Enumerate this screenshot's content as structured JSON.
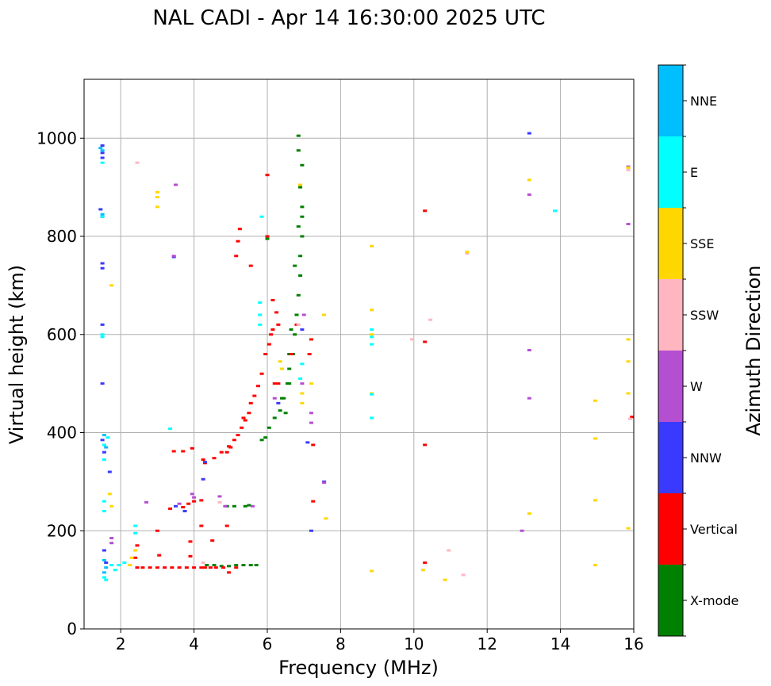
{
  "chart_data": {
    "type": "scatter",
    "title": "NAL CADI - Apr 14 16:30:00 2025 UTC",
    "xlabel": "Frequency (MHz)",
    "ylabel": "Virtual height (km)",
    "xlim": [
      1.0,
      16.0
    ],
    "ylim": [
      0,
      1120
    ],
    "xticks": [
      2,
      4,
      6,
      8,
      10,
      12,
      14,
      16
    ],
    "yticks": [
      0,
      200,
      400,
      600,
      800,
      1000
    ],
    "grid": true,
    "colorbar": {
      "label": "Azimuth Direction",
      "categories": [
        "X-mode",
        "Vertical",
        "NNW",
        "W",
        "SSW",
        "SSE",
        "E",
        "NNE"
      ],
      "colors": [
        "#008000",
        "#ff0000",
        "#3a3aff",
        "#b54fd2",
        "#ffb6c1",
        "#ffd700",
        "#00ffff",
        "#00bfff"
      ]
    },
    "series": [
      {
        "name": "X-mode",
        "points": [
          [
            4.35,
            130
          ],
          [
            4.55,
            130
          ],
          [
            4.75,
            128
          ],
          [
            4.95,
            128
          ],
          [
            5.15,
            130
          ],
          [
            5.35,
            130
          ],
          [
            5.55,
            130
          ],
          [
            5.7,
            130
          ],
          [
            4.9,
            250
          ],
          [
            5.1,
            250
          ],
          [
            5.4,
            250
          ],
          [
            5.5,
            252
          ],
          [
            5.85,
            385
          ],
          [
            5.95,
            390
          ],
          [
            6.05,
            410
          ],
          [
            6.2,
            430
          ],
          [
            6.35,
            445
          ],
          [
            6.45,
            470
          ],
          [
            6.55,
            500
          ],
          [
            6.6,
            530
          ],
          [
            6.7,
            560
          ],
          [
            6.75,
            600
          ],
          [
            6.8,
            640
          ],
          [
            6.85,
            680
          ],
          [
            6.9,
            720
          ],
          [
            6.9,
            760
          ],
          [
            6.95,
            800
          ],
          [
            6.95,
            840
          ],
          [
            6.95,
            860
          ],
          [
            6.9,
            900
          ],
          [
            6.95,
            945
          ],
          [
            6.85,
            975
          ],
          [
            6.85,
            1005
          ],
          [
            6.0,
            795
          ],
          [
            6.6,
            500
          ],
          [
            6.4,
            470
          ],
          [
            6.5,
            440
          ],
          [
            6.6,
            560
          ],
          [
            6.65,
            610
          ],
          [
            6.85,
            820
          ],
          [
            6.75,
            740
          ]
        ]
      },
      {
        "name": "Vertical",
        "points": [
          [
            2.45,
            125
          ],
          [
            2.6,
            125
          ],
          [
            2.8,
            125
          ],
          [
            3.0,
            125
          ],
          [
            3.2,
            125
          ],
          [
            3.4,
            125
          ],
          [
            3.6,
            125
          ],
          [
            3.8,
            125
          ],
          [
            4.0,
            125
          ],
          [
            4.2,
            125
          ],
          [
            4.3,
            125
          ],
          [
            4.45,
            125
          ],
          [
            4.6,
            125
          ],
          [
            4.8,
            125
          ],
          [
            4.95,
            115
          ],
          [
            5.15,
            125
          ],
          [
            2.45,
            170
          ],
          [
            2.4,
            145
          ],
          [
            3.05,
            150
          ],
          [
            3.0,
            200
          ],
          [
            3.9,
            148
          ],
          [
            3.9,
            178
          ],
          [
            4.2,
            210
          ],
          [
            4.5,
            180
          ],
          [
            4.9,
            210
          ],
          [
            3.35,
            245
          ],
          [
            3.7,
            248
          ],
          [
            3.85,
            255
          ],
          [
            4.0,
            260
          ],
          [
            4.2,
            262
          ],
          [
            3.45,
            362
          ],
          [
            3.7,
            362
          ],
          [
            3.95,
            368
          ],
          [
            4.25,
            345
          ],
          [
            4.3,
            338
          ],
          [
            4.55,
            348
          ],
          [
            4.75,
            360
          ],
          [
            4.95,
            372
          ],
          [
            5.1,
            385
          ],
          [
            5.2,
            395
          ],
          [
            5.3,
            410
          ],
          [
            5.4,
            425
          ],
          [
            5.5,
            440
          ],
          [
            5.55,
            460
          ],
          [
            5.65,
            475
          ],
          [
            5.75,
            495
          ],
          [
            5.85,
            520
          ],
          [
            5.95,
            560
          ],
          [
            6.05,
            580
          ],
          [
            6.1,
            600
          ],
          [
            6.15,
            610
          ],
          [
            6.25,
            645
          ],
          [
            6.15,
            670
          ],
          [
            6.3,
            620
          ],
          [
            6.3,
            500
          ],
          [
            6.0,
            800
          ],
          [
            6.0,
            925
          ],
          [
            5.15,
            760
          ],
          [
            5.2,
            790
          ],
          [
            5.25,
            815
          ],
          [
            5.55,
            740
          ],
          [
            6.65,
            560
          ],
          [
            6.8,
            620
          ],
          [
            7.15,
            560
          ],
          [
            7.2,
            590
          ],
          [
            7.25,
            375
          ],
          [
            7.25,
            260
          ],
          [
            10.3,
            852
          ],
          [
            10.3,
            585
          ],
          [
            10.3,
            375
          ],
          [
            10.3,
            135
          ],
          [
            15.95,
            432
          ],
          [
            5.0,
            370
          ],
          [
            4.9,
            360
          ],
          [
            5.35,
            430
          ],
          [
            6.2,
            500
          ]
        ]
      },
      {
        "name": "NNW",
        "points": [
          [
            1.5,
            985
          ],
          [
            1.5,
            970
          ],
          [
            1.5,
            960
          ],
          [
            1.45,
            855
          ],
          [
            1.5,
            840
          ],
          [
            1.5,
            745
          ],
          [
            1.5,
            735
          ],
          [
            1.5,
            620
          ],
          [
            1.5,
            500
          ],
          [
            1.5,
            385
          ],
          [
            1.55,
            360
          ],
          [
            1.7,
            320
          ],
          [
            1.55,
            160
          ],
          [
            1.6,
            135
          ],
          [
            3.45,
            758
          ],
          [
            3.5,
            250
          ],
          [
            3.75,
            240
          ],
          [
            4.25,
            305
          ],
          [
            4.3,
            340
          ],
          [
            7.55,
            300
          ],
          [
            7.2,
            200
          ],
          [
            7.1,
            380
          ],
          [
            13.15,
            1010
          ],
          [
            6.95,
            610
          ],
          [
            6.3,
            460
          ]
        ]
      },
      {
        "name": "W",
        "points": [
          [
            3.5,
            905
          ],
          [
            3.45,
            760
          ],
          [
            1.75,
            185
          ],
          [
            1.75,
            175
          ],
          [
            2.7,
            258
          ],
          [
            3.6,
            255
          ],
          [
            3.95,
            275
          ],
          [
            4.0,
            268
          ],
          [
            4.7,
            270
          ],
          [
            7.2,
            420
          ],
          [
            7.2,
            440
          ],
          [
            7.0,
            640
          ],
          [
            6.95,
            500
          ],
          [
            13.15,
            885
          ],
          [
            13.15,
            568
          ],
          [
            13.15,
            470
          ],
          [
            12.95,
            200
          ],
          [
            15.85,
            942
          ],
          [
            15.85,
            825
          ],
          [
            5.6,
            250
          ],
          [
            4.85,
            250
          ],
          [
            7.55,
            298
          ],
          [
            6.2,
            470
          ]
        ]
      },
      {
        "name": "SSW",
        "points": [
          [
            2.45,
            950
          ],
          [
            4.7,
            258
          ],
          [
            4.25,
            135
          ],
          [
            10.45,
            630
          ],
          [
            9.95,
            590
          ],
          [
            10.95,
            160
          ],
          [
            11.35,
            110
          ],
          [
            11.45,
            765
          ],
          [
            15.85,
            935
          ],
          [
            6.85,
            620
          ],
          [
            15.9,
            428
          ]
        ]
      },
      {
        "name": "SSE",
        "points": [
          [
            3.0,
            880
          ],
          [
            3.0,
            860
          ],
          [
            3.0,
            890
          ],
          [
            1.75,
            700
          ],
          [
            1.7,
            275
          ],
          [
            1.75,
            250
          ],
          [
            2.3,
            145
          ],
          [
            2.4,
            160
          ],
          [
            2.25,
            130
          ],
          [
            7.55,
            640
          ],
          [
            7.6,
            225
          ],
          [
            8.85,
            780
          ],
          [
            8.85,
            650
          ],
          [
            8.85,
            600
          ],
          [
            8.85,
            480
          ],
          [
            8.85,
            118
          ],
          [
            10.25,
            120
          ],
          [
            10.85,
            100
          ],
          [
            11.45,
            768
          ],
          [
            13.15,
            915
          ],
          [
            13.15,
            235
          ],
          [
            14.95,
            465
          ],
          [
            14.95,
            388
          ],
          [
            14.95,
            262
          ],
          [
            14.95,
            130
          ],
          [
            15.85,
            940
          ],
          [
            15.85,
            590
          ],
          [
            15.85,
            545
          ],
          [
            15.85,
            480
          ],
          [
            15.85,
            205
          ],
          [
            6.95,
            480
          ],
          [
            6.95,
            460
          ],
          [
            6.9,
            905
          ],
          [
            6.4,
            530
          ],
          [
            6.35,
            545
          ],
          [
            7.2,
            500
          ]
        ]
      },
      {
        "name": "E",
        "points": [
          [
            1.5,
            950
          ],
          [
            1.5,
            840
          ],
          [
            1.5,
            600
          ],
          [
            1.5,
            595
          ],
          [
            1.55,
            375
          ],
          [
            1.55,
            345
          ],
          [
            1.55,
            260
          ],
          [
            1.55,
            240
          ],
          [
            1.65,
            390
          ],
          [
            1.6,
            100
          ],
          [
            1.55,
            105
          ],
          [
            1.75,
            130
          ],
          [
            1.85,
            120
          ],
          [
            1.95,
            130
          ],
          [
            2.1,
            135
          ],
          [
            2.4,
            195
          ],
          [
            2.4,
            210
          ],
          [
            3.35,
            408
          ],
          [
            5.85,
            840
          ],
          [
            5.8,
            665
          ],
          [
            5.8,
            640
          ],
          [
            5.8,
            620
          ],
          [
            8.85,
            610
          ],
          [
            8.85,
            595
          ],
          [
            8.85,
            580
          ],
          [
            8.85,
            478
          ],
          [
            8.85,
            430
          ],
          [
            13.85,
            852
          ],
          [
            6.95,
            540
          ],
          [
            6.9,
            510
          ]
        ]
      },
      {
        "name": "NNE",
        "points": [
          [
            1.5,
            975
          ],
          [
            1.45,
            980
          ],
          [
            1.5,
            845
          ],
          [
            1.55,
            395
          ],
          [
            1.6,
            370
          ],
          [
            1.55,
            140
          ],
          [
            1.6,
            125
          ],
          [
            1.55,
            115
          ]
        ]
      }
    ]
  }
}
